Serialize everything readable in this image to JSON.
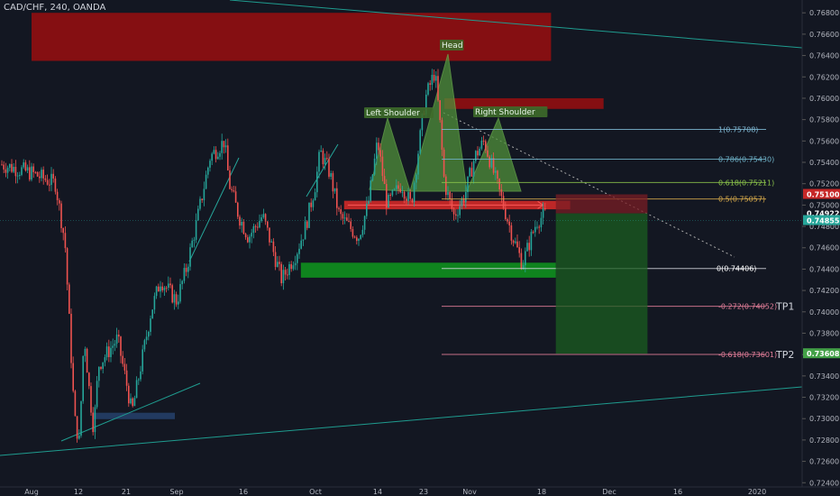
{
  "header": {
    "symbol_label": "CAD/CHF, 240, OANDA"
  },
  "colors": {
    "background": "#131722",
    "axis_text": "#b2b5be",
    "candle_up": "#26a69a",
    "candle_down": "#ef5350",
    "supply_zone": "#8b0f12",
    "demand_zone": "#0f8a1f",
    "pattern_fill": "#4f8f3a",
    "trendline": "#1f9c8f"
  },
  "chart_data": {
    "type": "candlestick",
    "title": "CAD/CHF, 240, OANDA",
    "ylim": [
      0.7236,
      0.7692
    ],
    "y_ticks": [
      "0.72400",
      "0.72600",
      "0.72800",
      "0.73000",
      "0.73200",
      "0.73400",
      "0.73600",
      "0.73800",
      "0.74000",
      "0.74200",
      "0.74400",
      "0.74600",
      "0.74800",
      "0.75000",
      "0.75200",
      "0.75400",
      "0.75600",
      "0.75800",
      "0.76000",
      "0.76200",
      "0.76400",
      "0.76600",
      "0.76800"
    ],
    "x_ticks": [
      "Aug",
      "12",
      "21",
      "Sep",
      "16",
      "Oct",
      "14",
      "23",
      "Nov",
      "18",
      "Dec",
      "16",
      "2020"
    ],
    "price_path": [
      [
        "Aug",
        0.753
      ],
      [
        "6",
        0.752
      ],
      [
        "8",
        0.7465
      ],
      [
        "10",
        0.73
      ],
      [
        "11",
        0.7278
      ],
      [
        "12",
        0.738
      ],
      [
        "13",
        0.733
      ],
      [
        "14",
        0.729
      ],
      [
        "15",
        0.735
      ],
      [
        "19",
        0.7375
      ],
      [
        "21",
        0.733
      ],
      [
        "22",
        0.7305
      ],
      [
        "26",
        0.74
      ],
      [
        "28",
        0.743
      ],
      [
        "Sep",
        0.741
      ],
      [
        "3",
        0.744
      ],
      [
        "5",
        0.748
      ],
      [
        "8",
        0.7545
      ],
      [
        "11",
        0.756
      ],
      [
        "12",
        0.752
      ],
      [
        "14",
        0.749
      ],
      [
        "16",
        0.747
      ],
      [
        "19",
        0.749
      ],
      [
        "21",
        0.746
      ],
      [
        "23",
        0.743
      ],
      [
        "26",
        0.7455
      ],
      [
        "28",
        0.748
      ],
      [
        "Oct",
        0.752
      ],
      [
        "2",
        0.755
      ],
      [
        "4",
        0.753
      ],
      [
        "6",
        0.749
      ],
      [
        "8",
        0.748
      ],
      [
        "10",
        0.747
      ],
      [
        "12",
        0.75
      ],
      [
        "14",
        0.756
      ],
      [
        "16",
        0.75
      ],
      [
        "19",
        0.752
      ],
      [
        "21",
        0.75
      ],
      [
        "24",
        0.76
      ],
      [
        "26",
        0.7625
      ],
      [
        "27",
        0.758
      ],
      [
        "28",
        0.752
      ],
      [
        "30",
        0.749
      ],
      [
        "Nov",
        0.751
      ],
      [
        "3",
        0.7545
      ],
      [
        "5",
        0.756
      ],
      [
        "7",
        0.753
      ],
      [
        "9",
        0.75
      ],
      [
        "11",
        0.747
      ],
      [
        "13",
        0.7445
      ],
      [
        "16",
        0.7485
      ],
      [
        "18",
        0.74922
      ]
    ],
    "current_price": "0.74922",
    "price_labels": [
      {
        "value": 0.751,
        "label": "0.75100",
        "color": "#c62828"
      },
      {
        "value": 0.74922,
        "label": "0.74922",
        "color": "#e0e3eb"
      },
      {
        "value": 0.74855,
        "label": "0.74855",
        "color": "#26a69a"
      },
      {
        "value": 0.73608,
        "label": "0.73608",
        "color": "#43a047"
      }
    ],
    "fibonacci": [
      {
        "label": "1(0.75708)",
        "value": 0.75708,
        "color": "#7fb8d4"
      },
      {
        "label": "0.786(0.75430)",
        "value": 0.7543,
        "color": "#6fb3c9"
      },
      {
        "label": "0.618(0.75211)",
        "value": 0.75211,
        "color": "#8bc34a"
      },
      {
        "label": "0.5(0.75057)",
        "value": 0.75057,
        "color": "#d4a84a"
      },
      {
        "label": "0(0.74406)",
        "value": 0.74406,
        "color": "#d1d4dc"
      },
      {
        "label": "-0.272(0.74052)",
        "value": 0.74052,
        "color": "#e57f9a"
      },
      {
        "label": "-0.618(0.73601)",
        "value": 0.73601,
        "color": "#e57f9a"
      }
    ],
    "pattern_labels": [
      "Left Shoulder",
      "Head",
      "Right Shoulder"
    ],
    "targets": [
      "TP1",
      "TP2"
    ],
    "zones": [
      {
        "kind": "supply",
        "from_date": "Aug",
        "to_date": "Nov 19",
        "low": 0.7635,
        "high": 0.768
      },
      {
        "kind": "supply",
        "from_date": "Oct 28",
        "to_date": "Nov 30",
        "low": 0.759,
        "high": 0.76
      },
      {
        "kind": "neckline",
        "from_date": "Oct 7",
        "to_date": "Nov 23",
        "low": 0.7496,
        "high": 0.7504
      },
      {
        "kind": "demand",
        "from_date": "Sep 27",
        "to_date": "Nov 20",
        "low": 0.7432,
        "high": 0.7446
      },
      {
        "kind": "consolidation",
        "from_date": "Aug 14",
        "to_date": "Aug 31",
        "low": 0.72995,
        "high": 0.73055
      }
    ],
    "short_position": {
      "entry": 0.74922,
      "stop": 0.751,
      "target": 0.73608
    }
  }
}
